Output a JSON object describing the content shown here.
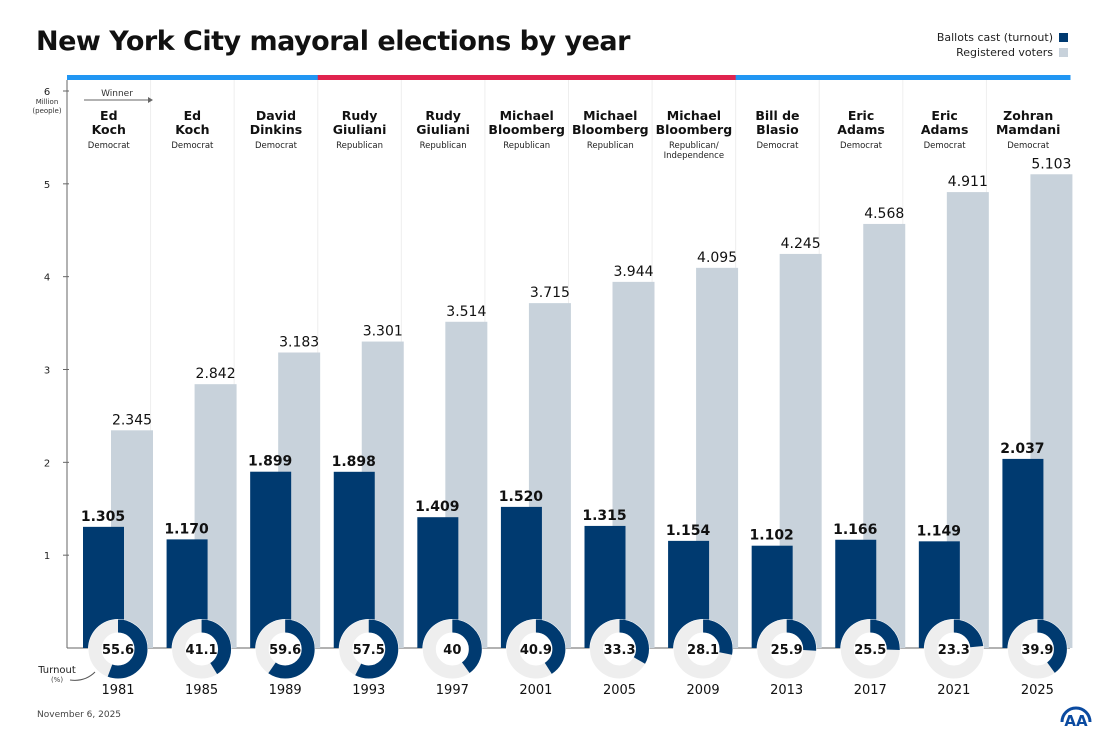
{
  "chart_data": {
    "type": "bar",
    "title": "New York City mayoral elections by year",
    "ylabel": "Million (people)",
    "ylim": [
      0,
      6
    ],
    "yticks": [
      "1",
      "2",
      "3",
      "4",
      "5",
      "6"
    ],
    "grid": false,
    "legend_position": "top-right",
    "categories": [
      "1981",
      "1985",
      "1989",
      "1993",
      "1997",
      "2001",
      "2005",
      "2009",
      "2013",
      "2017",
      "2021",
      "2025"
    ],
    "series": [
      {
        "name": "Ballots cast (turnout)",
        "color": "#003a70",
        "values": [
          1.305,
          1.17,
          1.899,
          1.898,
          1.409,
          1.52,
          1.315,
          1.154,
          1.102,
          1.166,
          1.149,
          2.037
        ],
        "labels": [
          "1.305",
          "1.170",
          "1.899",
          "1.898",
          "1.409",
          "1.520",
          "1.315",
          "1.154",
          "1.102",
          "1.166",
          "1.149",
          "2.037"
        ]
      },
      {
        "name": "Registered voters",
        "color": "#c8d2db",
        "values": [
          2.345,
          2.842,
          3.183,
          3.301,
          3.514,
          3.715,
          3.944,
          4.095,
          4.245,
          4.568,
          4.911,
          5.103
        ],
        "labels": [
          "2.345",
          "2.842",
          "3.183",
          "3.301",
          "3.514",
          "3.715",
          "3.944",
          "4.095",
          "4.245",
          "4.568",
          "4.911",
          "5.103"
        ]
      }
    ],
    "turnout_label": "Turnout",
    "turnout_unit": "(%)",
    "turnout_percent": [
      55.6,
      41.1,
      59.6,
      57.5,
      40,
      40.9,
      33.3,
      28.1,
      25.9,
      25.5,
      23.3,
      39.9
    ],
    "turnout_labels": [
      "55.6",
      "41.1",
      "59.6",
      "57.5",
      "40",
      "40.9",
      "33.3",
      "28.1",
      "25.9",
      "25.5",
      "23.3",
      "39.9"
    ],
    "winner_label": "Winner",
    "winners": [
      {
        "name": [
          "Ed",
          "Koch"
        ],
        "party": [
          "Democrat"
        ],
        "color": "#2196f3"
      },
      {
        "name": [
          "Ed",
          "Koch"
        ],
        "party": [
          "Democrat"
        ],
        "color": "#2196f3"
      },
      {
        "name": [
          "David",
          "Dinkins"
        ],
        "party": [
          "Democrat"
        ],
        "color": "#2196f3"
      },
      {
        "name": [
          "Rudy",
          "Giuliani"
        ],
        "party": [
          "Republican"
        ],
        "color": "#e0234e"
      },
      {
        "name": [
          "Rudy",
          "Giuliani"
        ],
        "party": [
          "Republican"
        ],
        "color": "#e0234e"
      },
      {
        "name": [
          "Michael",
          "Bloomberg"
        ],
        "party": [
          "Republican"
        ],
        "color": "#e0234e"
      },
      {
        "name": [
          "Michael",
          "Bloomberg"
        ],
        "party": [
          "Republican"
        ],
        "color": "#e0234e"
      },
      {
        "name": [
          "Michael",
          "Bloomberg"
        ],
        "party": [
          "Republican/",
          "Independence"
        ],
        "color": "#e0234e"
      },
      {
        "name": [
          "Bill de",
          "Blasio"
        ],
        "party": [
          "Democrat"
        ],
        "color": "#2196f3"
      },
      {
        "name": [
          "Eric",
          "Adams"
        ],
        "party": [
          "Democrat"
        ],
        "color": "#2196f3"
      },
      {
        "name": [
          "Eric",
          "Adams"
        ],
        "party": [
          "Democrat"
        ],
        "color": "#2196f3"
      },
      {
        "name": [
          "Zohran",
          "Mamdani"
        ],
        "party": [
          "Democrat"
        ],
        "color": "#2196f3"
      }
    ]
  },
  "date": "November 6, 2025",
  "logo_text": "AA"
}
